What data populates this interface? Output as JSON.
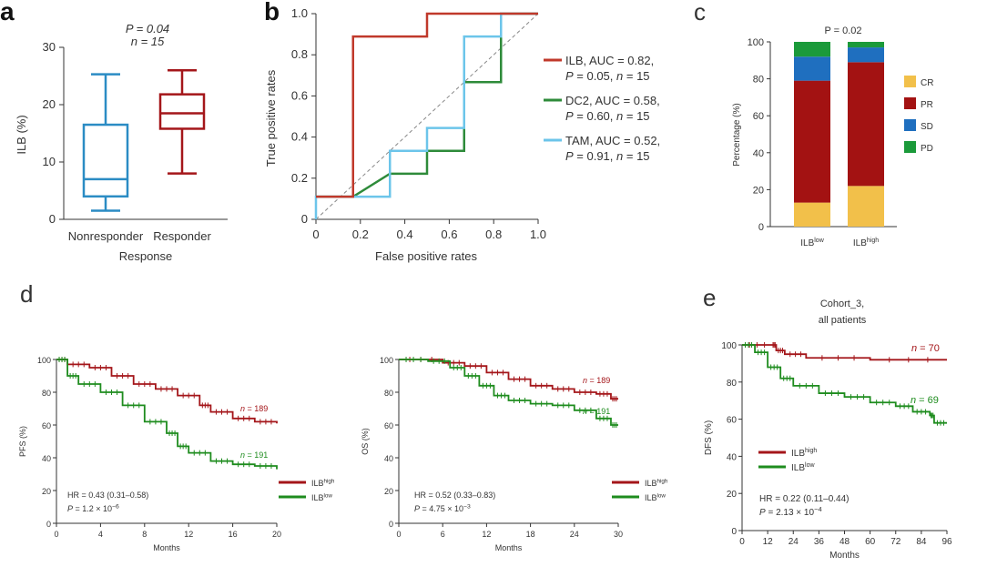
{
  "colors": {
    "responder": "#a4161a",
    "nonresponder": "#2b8cc4",
    "ilb": "#c0392b",
    "dc2": "#2e8b3a",
    "tam": "#6cc5ea",
    "high": "#a4161a",
    "low": "#1e8c1e",
    "cr": "#f2c04a",
    "pr": "#a31212",
    "sd": "#1f6fbf",
    "pd": "#1b9a3a"
  },
  "chart_data": [
    {
      "panel": "a",
      "type": "box",
      "annotation": {
        "p": "P = 0.04",
        "n": "n = 15"
      },
      "xlabel": "Response",
      "ylabel": "ILB (%)",
      "ylim": [
        0,
        30
      ],
      "yticks": [
        0,
        10,
        20,
        30
      ],
      "categories": [
        "Nonresponder",
        "Responder"
      ],
      "boxes": [
        {
          "name": "Nonresponder",
          "min": 1.5,
          "q1": 4,
          "median": 7,
          "q3": 16.5,
          "max": 25.3
        },
        {
          "name": "Responder",
          "min": 8,
          "q1": 15.8,
          "median": 18.5,
          "q3": 21.8,
          "max": 26
        }
      ]
    },
    {
      "panel": "b",
      "type": "line",
      "xlabel": "False positive rates",
      "ylabel": "True positive rates",
      "xlim": [
        0,
        1
      ],
      "ylim": [
        0,
        1
      ],
      "xticks": [
        "0",
        "0.2",
        "0.4",
        "0.6",
        "0.8",
        "1.0"
      ],
      "yticks": [
        "0",
        "0.2",
        "0.4",
        "0.6",
        "0.8",
        "1.0"
      ],
      "series": [
        {
          "name": "ILB",
          "legend1": "ILB, AUC = 0.82,",
          "legend2": "P = 0.05, n = 15",
          "points": [
            [
              0,
              0.11
            ],
            [
              0.167,
              0.11
            ],
            [
              0.167,
              0.889
            ],
            [
              0.5,
              0.889
            ],
            [
              0.5,
              1
            ],
            [
              1,
              1
            ]
          ]
        },
        {
          "name": "DC2",
          "legend1": "DC2, AUC = 0.58,",
          "legend2": "P = 0.60, n = 15",
          "points": [
            [
              0,
              0.11
            ],
            [
              0.167,
              0.11
            ],
            [
              0.333,
              0.222
            ],
            [
              0.5,
              0.222
            ],
            [
              0.5,
              0.333
            ],
            [
              0.667,
              0.333
            ],
            [
              0.667,
              0.667
            ],
            [
              0.833,
              0.667
            ],
            [
              0.833,
              1
            ],
            [
              1,
              1
            ]
          ]
        },
        {
          "name": "TAM",
          "legend1": "TAM, AUC = 0.52,",
          "legend2": "P = 0.91, n = 15",
          "points": [
            [
              0,
              0
            ],
            [
              0,
              0.11
            ],
            [
              0.333,
              0.11
            ],
            [
              0.333,
              0.333
            ],
            [
              0.5,
              0.333
            ],
            [
              0.5,
              0.444
            ],
            [
              0.667,
              0.444
            ],
            [
              0.667,
              0.889
            ],
            [
              0.833,
              0.889
            ],
            [
              0.833,
              1
            ],
            [
              1,
              1
            ]
          ]
        }
      ]
    },
    {
      "panel": "c",
      "type": "bar",
      "stacked": true,
      "annotation": "P = 0.02",
      "ylabel": "Percentage (%)",
      "ylim": [
        0,
        100
      ],
      "yticks": [
        0,
        20,
        40,
        60,
        80,
        100
      ],
      "categories": [
        {
          "base": "ILB",
          "sup": "low"
        },
        {
          "base": "ILB",
          "sup": "high"
        }
      ],
      "legend": [
        "CR",
        "PR",
        "SD",
        "PD"
      ],
      "series": [
        {
          "name": "CR",
          "values": [
            13,
            22
          ]
        },
        {
          "name": "PR",
          "values": [
            66,
            67
          ]
        },
        {
          "name": "SD",
          "values": [
            13,
            8
          ]
        },
        {
          "name": "PD",
          "values": [
            8,
            3
          ]
        }
      ]
    },
    {
      "panel": "d-left",
      "type": "line",
      "subtype": "kaplan-meier",
      "xlabel": "Months",
      "ylabel": "PFS (%)",
      "xlim": [
        0,
        20
      ],
      "ylim": [
        0,
        100
      ],
      "xticks": [
        0,
        4,
        8,
        12,
        16,
        20
      ],
      "yticks": [
        0,
        20,
        40,
        60,
        80,
        100
      ],
      "hr": "HR = 0.43 (0.31–0.58)",
      "p": {
        "base": "P = 1.2 × 10",
        "exp": "−6"
      },
      "legend": [
        {
          "base": "ILB",
          "sup": "high"
        },
        {
          "base": "ILB",
          "sup": "low"
        }
      ],
      "series": [
        {
          "group": "high",
          "n_label": "n = 189",
          "points": [
            [
              0,
              100
            ],
            [
              1,
              97
            ],
            [
              3,
              95
            ],
            [
              5,
              90
            ],
            [
              7,
              85
            ],
            [
              9,
              82
            ],
            [
              11,
              78
            ],
            [
              13,
              72
            ],
            [
              14,
              68
            ],
            [
              16,
              64
            ],
            [
              18,
              62
            ],
            [
              20,
              61
            ]
          ]
        },
        {
          "group": "low",
          "n_label": "n = 191",
          "points": [
            [
              0,
              100
            ],
            [
              1,
              90
            ],
            [
              2,
              85
            ],
            [
              4,
              80
            ],
            [
              6,
              72
            ],
            [
              8,
              62
            ],
            [
              10,
              55
            ],
            [
              11,
              47
            ],
            [
              12,
              43
            ],
            [
              14,
              38
            ],
            [
              16,
              36
            ],
            [
              18,
              35
            ],
            [
              20,
              33
            ]
          ]
        }
      ]
    },
    {
      "panel": "d-right",
      "type": "line",
      "subtype": "kaplan-meier",
      "xlabel": "Months",
      "ylabel": "OS (%)",
      "xlim": [
        0,
        30
      ],
      "ylim": [
        0,
        100
      ],
      "xticks": [
        0,
        6,
        12,
        18,
        24,
        30
      ],
      "yticks": [
        0,
        20,
        40,
        60,
        80,
        100
      ],
      "hr": "HR = 0.52 (0.33–0.83)",
      "p": {
        "base": "P = 4.75 × 10",
        "exp": "−3"
      },
      "legend": [
        {
          "base": "ILB",
          "sup": "high"
        },
        {
          "base": "ILB",
          "sup": "low"
        }
      ],
      "series": [
        {
          "group": "high",
          "n_label": "n = 189",
          "points": [
            [
              0,
              100
            ],
            [
              6,
              98
            ],
            [
              9,
              96
            ],
            [
              12,
              92
            ],
            [
              15,
              88
            ],
            [
              18,
              84
            ],
            [
              21,
              82
            ],
            [
              24,
              80
            ],
            [
              27,
              79
            ],
            [
              29,
              76
            ],
            [
              30,
              76
            ]
          ]
        },
        {
          "group": "low",
          "n_label": "n = 191",
          "points": [
            [
              0,
              100
            ],
            [
              4,
              99
            ],
            [
              7,
              95
            ],
            [
              9,
              90
            ],
            [
              11,
              84
            ],
            [
              13,
              78
            ],
            [
              15,
              75
            ],
            [
              18,
              73
            ],
            [
              21,
              72
            ],
            [
              24,
              69
            ],
            [
              27,
              64
            ],
            [
              29,
              60
            ],
            [
              30,
              60
            ]
          ]
        }
      ]
    },
    {
      "panel": "e",
      "type": "line",
      "subtype": "kaplan-meier",
      "title1": "Cohort_3,",
      "title2": "all patients",
      "xlabel": "Months",
      "ylabel": "DFS (%)",
      "xlim": [
        0,
        96
      ],
      "ylim": [
        0,
        100
      ],
      "xticks": [
        0,
        12,
        24,
        36,
        48,
        60,
        72,
        84,
        96
      ],
      "yticks": [
        0,
        20,
        40,
        60,
        80,
        100
      ],
      "hr": "HR = 0.22 (0.11–0.44)",
      "p": {
        "base": "P = 2.13 × 10",
        "exp": "−4"
      },
      "legend": [
        {
          "base": "ILB",
          "sup": "high"
        },
        {
          "base": "ILB",
          "sup": "low"
        }
      ],
      "series": [
        {
          "group": "high",
          "n_label": "n = 70",
          "points": [
            [
              0,
              100
            ],
            [
              14,
              100
            ],
            [
              16,
              97
            ],
            [
              20,
              95
            ],
            [
              30,
              93
            ],
            [
              60,
              92
            ],
            [
              96,
              92
            ]
          ]
        },
        {
          "group": "low",
          "n_label": "n = 69",
          "points": [
            [
              0,
              100
            ],
            [
              6,
              96
            ],
            [
              12,
              88
            ],
            [
              18,
              82
            ],
            [
              24,
              78
            ],
            [
              36,
              74
            ],
            [
              48,
              72
            ],
            [
              60,
              69
            ],
            [
              72,
              67
            ],
            [
              80,
              64
            ],
            [
              88,
              62
            ],
            [
              90,
              58
            ],
            [
              96,
              58
            ]
          ]
        }
      ]
    }
  ],
  "panel_letters": [
    "a",
    "b",
    "c",
    "d",
    "e"
  ]
}
